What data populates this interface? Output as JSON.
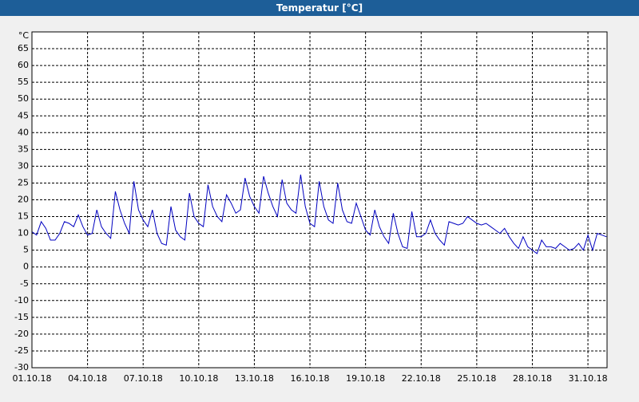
{
  "window_title": "Temperatur [°C]",
  "chart_data": {
    "type": "line",
    "y_label": "°C",
    "color": "#0000c0",
    "grid": true,
    "ylim": [
      -30,
      70
    ],
    "yticks": [
      -30,
      -25,
      -20,
      -15,
      -10,
      -5,
      0,
      5,
      10,
      15,
      20,
      25,
      30,
      35,
      40,
      45,
      50,
      55,
      60,
      65
    ],
    "xlim": [
      "2018-10-01T00:00",
      "2018-11-01T00:45"
    ],
    "xticks": [
      {
        "value": "2018-10-01T00:00",
        "label": "01.10.18"
      },
      {
        "value": "2018-10-04T00:00",
        "label": "04.10.18"
      },
      {
        "value": "2018-10-07T00:00",
        "label": "07.10.18"
      },
      {
        "value": "2018-10-10T00:00",
        "label": "10.10.18"
      },
      {
        "value": "2018-10-13T00:00",
        "label": "13.10.18"
      },
      {
        "value": "2018-10-16T00:00",
        "label": "16.10.18"
      },
      {
        "value": "2018-10-19T00:00",
        "label": "19.10.18"
      },
      {
        "value": "2018-10-22T00:00",
        "label": "22.10.18"
      },
      {
        "value": "2018-10-25T00:00",
        "label": "25.10.18"
      },
      {
        "value": "2018-10-28T00:00",
        "label": "28.10.18"
      },
      {
        "value": "2018-10-31T00:00",
        "label": "31.10.18"
      }
    ],
    "x": [
      "2018-10-01T00:00",
      "2018-10-01T06:00",
      "2018-10-01T12:00",
      "2018-10-01T18:00",
      "2018-10-02T00:00",
      "2018-10-02T06:00",
      "2018-10-02T12:00",
      "2018-10-02T18:00",
      "2018-10-03T00:00",
      "2018-10-03T06:00",
      "2018-10-03T12:00",
      "2018-10-03T18:00",
      "2018-10-04T00:00",
      "2018-10-04T06:00",
      "2018-10-04T12:00",
      "2018-10-04T18:00",
      "2018-10-05T00:00",
      "2018-10-05T06:00",
      "2018-10-05T12:00",
      "2018-10-05T18:00",
      "2018-10-06T00:00",
      "2018-10-06T06:00",
      "2018-10-06T12:00",
      "2018-10-06T18:00",
      "2018-10-07T00:00",
      "2018-10-07T06:00",
      "2018-10-07T12:00",
      "2018-10-07T18:00",
      "2018-10-08T00:00",
      "2018-10-08T06:00",
      "2018-10-08T12:00",
      "2018-10-08T18:00",
      "2018-10-09T00:00",
      "2018-10-09T06:00",
      "2018-10-09T12:00",
      "2018-10-09T18:00",
      "2018-10-10T00:00",
      "2018-10-10T06:00",
      "2018-10-10T12:00",
      "2018-10-10T18:00",
      "2018-10-11T00:00",
      "2018-10-11T06:00",
      "2018-10-11T12:00",
      "2018-10-11T18:00",
      "2018-10-12T00:00",
      "2018-10-12T06:00",
      "2018-10-12T12:00",
      "2018-10-12T18:00",
      "2018-10-13T00:00",
      "2018-10-13T06:00",
      "2018-10-13T12:00",
      "2018-10-13T18:00",
      "2018-10-14T00:00",
      "2018-10-14T06:00",
      "2018-10-14T12:00",
      "2018-10-14T18:00",
      "2018-10-15T00:00",
      "2018-10-15T06:00",
      "2018-10-15T12:00",
      "2018-10-15T18:00",
      "2018-10-16T00:00",
      "2018-10-16T06:00",
      "2018-10-16T12:00",
      "2018-10-16T18:00",
      "2018-10-17T00:00",
      "2018-10-17T06:00",
      "2018-10-17T12:00",
      "2018-10-17T18:00",
      "2018-10-18T00:00",
      "2018-10-18T06:00",
      "2018-10-18T12:00",
      "2018-10-18T18:00",
      "2018-10-19T00:00",
      "2018-10-19T06:00",
      "2018-10-19T12:00",
      "2018-10-19T18:00",
      "2018-10-20T00:00",
      "2018-10-20T06:00",
      "2018-10-20T12:00",
      "2018-10-20T18:00",
      "2018-10-21T00:00",
      "2018-10-21T06:00",
      "2018-10-21T12:00",
      "2018-10-21T18:00",
      "2018-10-22T00:00",
      "2018-10-22T06:00",
      "2018-10-22T12:00",
      "2018-10-22T18:00",
      "2018-10-23T00:00",
      "2018-10-23T06:00",
      "2018-10-23T12:00",
      "2018-10-23T18:00",
      "2018-10-24T00:00",
      "2018-10-24T06:00",
      "2018-10-24T12:00",
      "2018-10-24T18:00",
      "2018-10-25T00:00",
      "2018-10-25T06:00",
      "2018-10-25T12:00",
      "2018-10-25T18:00",
      "2018-10-26T00:00",
      "2018-10-26T06:00",
      "2018-10-26T12:00",
      "2018-10-26T18:00",
      "2018-10-27T00:00",
      "2018-10-27T06:00",
      "2018-10-27T12:00",
      "2018-10-27T18:00",
      "2018-10-28T00:00",
      "2018-10-28T06:00",
      "2018-10-28T12:00",
      "2018-10-28T18:00",
      "2018-10-29T00:00",
      "2018-10-29T06:00",
      "2018-10-29T12:00",
      "2018-10-29T18:00",
      "2018-10-30T00:00",
      "2018-10-30T06:00",
      "2018-10-30T12:00",
      "2018-10-30T18:00",
      "2018-10-31T00:00",
      "2018-10-31T06:00",
      "2018-10-31T12:00",
      "2018-10-31T18:00",
      "2018-11-01T00:00"
    ],
    "values": [
      10.5,
      9.5,
      13.5,
      11.5,
      8,
      8,
      10,
      13.5,
      13,
      12,
      15.5,
      12,
      9.5,
      10,
      17,
      12,
      10,
      8.5,
      22.5,
      17,
      13,
      10,
      25.5,
      17,
      14,
      12,
      17,
      10,
      7,
      6.5,
      18,
      11,
      9,
      8,
      22,
      15,
      13,
      12,
      24.5,
      18,
      15,
      13.5,
      21.5,
      19,
      16,
      17,
      26.5,
      21,
      18,
      16,
      27,
      22,
      18,
      15,
      26,
      19,
      17,
      16,
      27.5,
      18,
      13,
      12,
      25.5,
      18,
      14,
      13,
      25,
      17,
      13.5,
      13,
      19,
      15,
      11,
      9.5,
      17,
      12,
      9,
      7,
      16,
      10,
      6,
      5.5,
      16.5,
      9,
      9,
      10,
      14,
      10,
      8,
      6.5,
      13.5,
      13,
      12.5,
      13,
      15,
      14,
      13,
      12.5,
      13,
      12,
      11,
      10,
      11.5,
      9,
      7,
      5.5,
      9,
      6,
      5,
      4,
      8,
      6,
      6,
      5.5,
      7,
      6,
      5,
      5.5,
      7,
      5,
      9.5,
      5,
      10,
      9.5,
      9
    ]
  }
}
